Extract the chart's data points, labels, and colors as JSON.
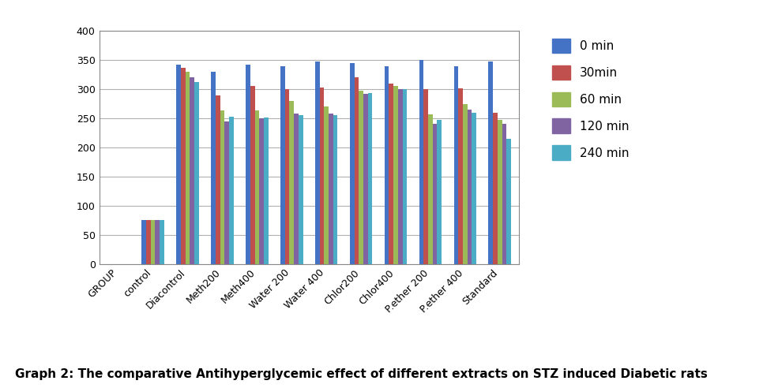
{
  "categories": [
    "GROUP",
    "control",
    "Diacontrol",
    "Meth200",
    "Meth400",
    "Water 200",
    "Water 400",
    "Chlor200",
    "Chlor400",
    "P.ether 200",
    "P.ether 400",
    "Standard"
  ],
  "series": {
    "0 min": [
      0,
      75,
      342,
      330,
      342,
      340,
      347,
      345,
      340,
      350,
      340,
      347
    ],
    "30min": [
      0,
      75,
      337,
      290,
      305,
      300,
      303,
      320,
      310,
      300,
      302,
      260
    ],
    "60 min": [
      0,
      75,
      330,
      263,
      263,
      280,
      270,
      298,
      305,
      257,
      275,
      248
    ],
    "120 min": [
      0,
      75,
      320,
      245,
      250,
      258,
      258,
      292,
      300,
      240,
      265,
      240
    ],
    "240 min": [
      0,
      75,
      312,
      253,
      252,
      255,
      255,
      293,
      300,
      248,
      260,
      215
    ]
  },
  "colors": {
    "0 min": "#4472C4",
    "30min": "#C0504D",
    "60 min": "#9BBB59",
    "120 min": "#8064A2",
    "240 min": "#4BACC6"
  },
  "ylim": [
    0,
    400
  ],
  "yticks": [
    0,
    50,
    100,
    150,
    200,
    250,
    300,
    350,
    400
  ],
  "caption": "Graph 2: The comparative Antihyperglycemic effect of different extracts on STZ induced Diabetic rats",
  "caption_fontsize": 11,
  "legend_fontsize": 11,
  "tick_fontsize": 9,
  "bar_width": 0.13,
  "figure_width": 9.66,
  "figure_height": 4.92,
  "background_color": "#ffffff",
  "plot_bg_color": "#ffffff",
  "grid_color": "#b0b0b0"
}
